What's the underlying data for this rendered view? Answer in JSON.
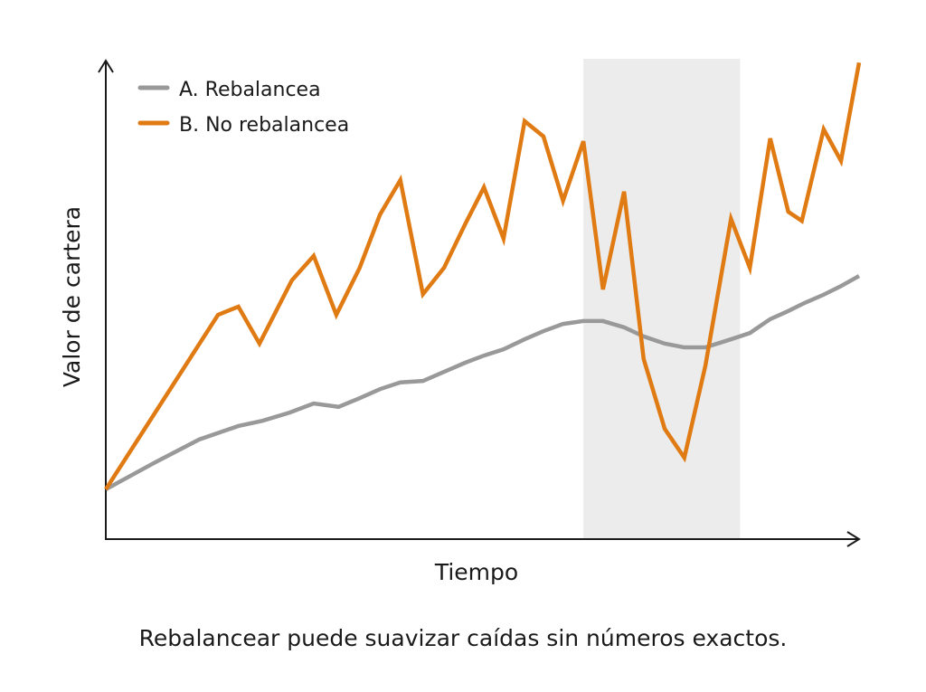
{
  "chart_data": {
    "type": "line",
    "title": "",
    "xlabel": "Tiempo",
    "ylabel": "Valor de cartera",
    "caption": "Rebalancear puede suavizar caídas sin números exactos.",
    "xlim": [
      0,
      100
    ],
    "ylim": [
      0,
      100
    ],
    "ticks": "none",
    "grid": false,
    "legend_placement": "top-left",
    "shaded_region": {
      "x": [
        63.4,
        84.2
      ],
      "color": "#ececec"
    },
    "series": [
      {
        "name": "A. Rebalancea",
        "color": "#999999",
        "points": [
          [
            0,
            10.2
          ],
          [
            6.4,
            15.7
          ],
          [
            12.4,
            20.6
          ],
          [
            17.6,
            23.4
          ],
          [
            20.8,
            24.5
          ],
          [
            24.4,
            26.2
          ],
          [
            27.6,
            28.1
          ],
          [
            30.9,
            27.4
          ],
          [
            33.7,
            29.2
          ],
          [
            36.4,
            31.1
          ],
          [
            39.1,
            32.5
          ],
          [
            42.1,
            32.8
          ],
          [
            44.9,
            34.7
          ],
          [
            47.7,
            36.6
          ],
          [
            50.2,
            38.1
          ],
          [
            52.8,
            39.4
          ],
          [
            55.6,
            41.5
          ],
          [
            58.1,
            43.2
          ],
          [
            60.7,
            44.7
          ],
          [
            63.4,
            45.3
          ],
          [
            66.0,
            45.3
          ],
          [
            68.8,
            44.0
          ],
          [
            71.4,
            42.1
          ],
          [
            74.2,
            40.6
          ],
          [
            76.8,
            39.8
          ],
          [
            79.6,
            39.8
          ],
          [
            83.0,
            41.5
          ],
          [
            85.5,
            42.8
          ],
          [
            88.2,
            45.7
          ],
          [
            90.6,
            47.4
          ],
          [
            92.8,
            49.1
          ],
          [
            95.3,
            50.8
          ],
          [
            97.6,
            52.6
          ],
          [
            100,
            54.7
          ]
        ]
      },
      {
        "name": "B. No rebalancea",
        "color": "#E07B14",
        "points": [
          [
            0,
            10.2
          ],
          [
            14.9,
            46.6
          ],
          [
            17.6,
            48.3
          ],
          [
            20.4,
            40.6
          ],
          [
            24.7,
            53.8
          ],
          [
            27.6,
            58.9
          ],
          [
            30.6,
            46.6
          ],
          [
            33.7,
            56.4
          ],
          [
            36.4,
            67.5
          ],
          [
            39.1,
            74.7
          ],
          [
            42.1,
            50.9
          ],
          [
            44.9,
            56.4
          ],
          [
            47.7,
            65.5
          ],
          [
            50.2,
            73.2
          ],
          [
            52.8,
            62.5
          ],
          [
            55.6,
            87.0
          ],
          [
            58.1,
            83.8
          ],
          [
            60.7,
            70.4
          ],
          [
            63.4,
            82.8
          ],
          [
            66.0,
            51.9
          ],
          [
            68.8,
            72.3
          ],
          [
            71.4,
            37.4
          ],
          [
            74.2,
            22.8
          ],
          [
            76.8,
            16.8
          ],
          [
            79.6,
            36.0
          ],
          [
            83.0,
            66.6
          ],
          [
            85.5,
            56.4
          ],
          [
            88.2,
            83.4
          ],
          [
            90.6,
            68.1
          ],
          [
            92.4,
            66.2
          ],
          [
            95.3,
            85.3
          ],
          [
            97.6,
            78.7
          ],
          [
            100,
            99.2
          ]
        ]
      }
    ]
  }
}
